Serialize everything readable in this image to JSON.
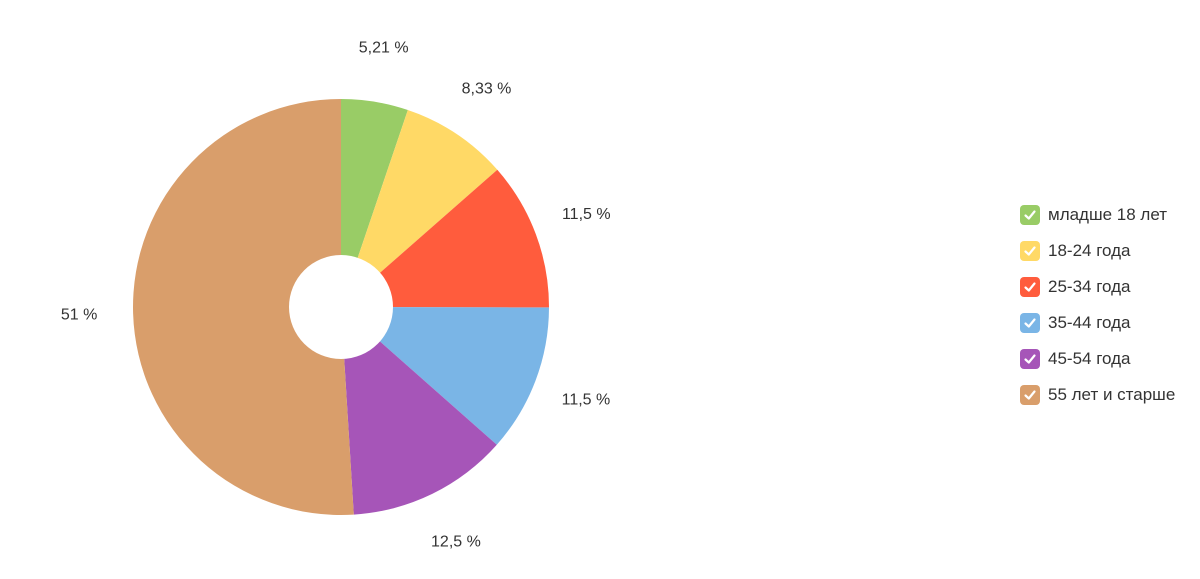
{
  "chart_data": {
    "type": "pie",
    "donut": true,
    "title": "",
    "legend_position": "right",
    "categories": [
      "младше 18 лет",
      "18-24 года",
      "25-34 года",
      "35-44 года",
      "45-54 года",
      "55 лет и старше"
    ],
    "values": [
      5.21,
      8.33,
      11.5,
      11.5,
      12.5,
      51
    ],
    "value_labels": [
      "5,21 %",
      "8,33 %",
      "11,5 %",
      "11,5 %",
      "12,5 %",
      "51 %"
    ],
    "colors": [
      "#99cc66",
      "#ffd966",
      "#ff5c3d",
      "#7ab5e6",
      "#a655b8",
      "#d99e6b"
    ]
  },
  "legend": {
    "icon": "checkmark-icon",
    "items": [
      {
        "label": "младше 18 лет",
        "color": "#99cc66"
      },
      {
        "label": "18-24 года",
        "color": "#ffd966"
      },
      {
        "label": "25-34 года",
        "color": "#ff5c3d"
      },
      {
        "label": "35-44 года",
        "color": "#7ab5e6"
      },
      {
        "label": "45-54 года",
        "color": "#a655b8"
      },
      {
        "label": "55 лет и старше",
        "color": "#d99e6b"
      }
    ]
  }
}
